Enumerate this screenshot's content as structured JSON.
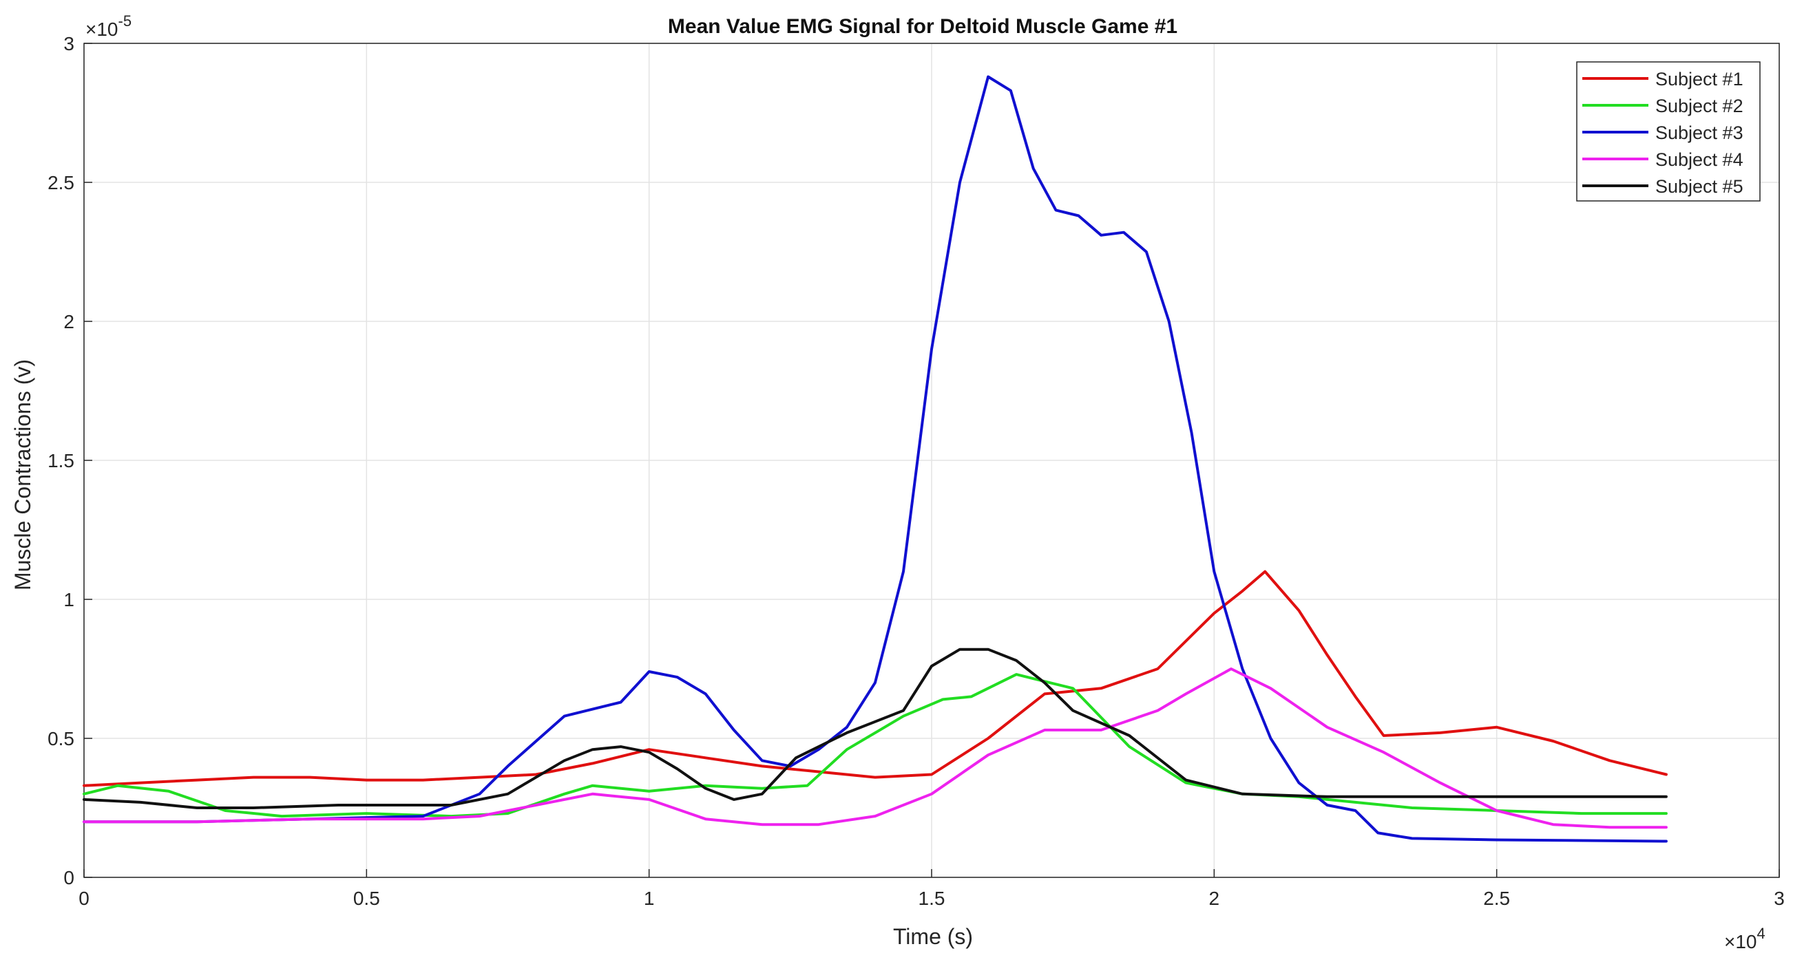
{
  "chart_data": {
    "type": "line",
    "title": "Mean Value EMG Signal for Deltoid Muscle Game #1",
    "xlabel": "Time (s)",
    "ylabel": "Muscle Contractions (v)",
    "xlim": [
      0,
      30000
    ],
    "ylim": [
      0,
      3e-05
    ],
    "x_multiplier_label": "×10",
    "x_multiplier_exp": "4",
    "y_multiplier_label": "×10",
    "y_multiplier_exp": "-5",
    "x_ticks": [
      0,
      5000,
      10000,
      15000,
      20000,
      25000,
      30000
    ],
    "x_tick_labels": [
      "0",
      "0.5",
      "1",
      "1.5",
      "2",
      "2.5",
      "3"
    ],
    "y_ticks": [
      0,
      5e-06,
      1e-05,
      1.5e-05,
      2e-05,
      2.5e-05,
      3e-05
    ],
    "y_tick_labels": [
      "0",
      "0.5",
      "1",
      "1.5",
      "2",
      "2.5",
      "3"
    ],
    "grid": true,
    "legend_position": "top-right",
    "series": [
      {
        "name": "Subject #1",
        "color": "#e01010",
        "x": [
          0,
          1000,
          2000,
          3000,
          4000,
          5000,
          6000,
          7000,
          8000,
          9000,
          10000,
          11000,
          12000,
          13000,
          14000,
          15000,
          16000,
          17000,
          18000,
          19000,
          20000,
          20500,
          20900,
          21500,
          22000,
          22500,
          23000,
          24000,
          25000,
          26000,
          27000,
          28000
        ],
        "y": [
          3.3e-06,
          3.4e-06,
          3.5e-06,
          3.6e-06,
          3.6e-06,
          3.5e-06,
          3.5e-06,
          3.6e-06,
          3.7e-06,
          4.1e-06,
          4.6e-06,
          4.3e-06,
          4e-06,
          3.8e-06,
          3.6e-06,
          3.7e-06,
          5e-06,
          6.6e-06,
          6.8e-06,
          7.5e-06,
          9.5e-06,
          1.03e-05,
          1.1e-05,
          9.6e-06,
          8e-06,
          6.5e-06,
          5.1e-06,
          5.2e-06,
          5.4e-06,
          4.9e-06,
          4.2e-06,
          3.7e-06
        ]
      },
      {
        "name": "Subject #2",
        "color": "#22dd22",
        "x": [
          0,
          600,
          1500,
          2500,
          3500,
          5000,
          6500,
          7500,
          8500,
          9000,
          10000,
          11000,
          12000,
          12800,
          13500,
          14500,
          15200,
          15700,
          16500,
          17500,
          18500,
          19500,
          20500,
          21500,
          22500,
          23500,
          25000,
          26500,
          28000
        ],
        "y": [
          3e-06,
          3.3e-06,
          3.1e-06,
          2.4e-06,
          2.2e-06,
          2.3e-06,
          2.2e-06,
          2.3e-06,
          3e-06,
          3.3e-06,
          3.1e-06,
          3.3e-06,
          3.2e-06,
          3.3e-06,
          4.6e-06,
          5.8e-06,
          6.4e-06,
          6.5e-06,
          7.3e-06,
          6.8e-06,
          4.7e-06,
          3.4e-06,
          3e-06,
          2.9e-06,
          2.7e-06,
          2.5e-06,
          2.4e-06,
          2.3e-06,
          2.3e-06
        ]
      },
      {
        "name": "Subject #3",
        "color": "#1010d0",
        "x": [
          0,
          2000,
          4000,
          6000,
          7000,
          7500,
          8500,
          9500,
          10000,
          10500,
          11000,
          11500,
          12000,
          12500,
          13000,
          13500,
          14000,
          14500,
          15000,
          15500,
          16000,
          16400,
          16800,
          17200,
          17600,
          18000,
          18400,
          18800,
          19200,
          19600,
          20000,
          20500,
          21000,
          21500,
          22000,
          22500,
          22900,
          23500,
          25000,
          28000
        ],
        "y": [
          2e-06,
          2e-06,
          2.1e-06,
          2.2e-06,
          3e-06,
          4e-06,
          5.8e-06,
          6.3e-06,
          7.4e-06,
          7.2e-06,
          6.6e-06,
          5.3e-06,
          4.2e-06,
          4e-06,
          4.6e-06,
          5.4e-06,
          7e-06,
          1.1e-05,
          1.9e-05,
          2.5e-05,
          2.88e-05,
          2.83e-05,
          2.55e-05,
          2.4e-05,
          2.38e-05,
          2.31e-05,
          2.32e-05,
          2.25e-05,
          2e-05,
          1.6e-05,
          1.1e-05,
          7.5e-06,
          5e-06,
          3.4e-06,
          2.6e-06,
          2.4e-06,
          1.6e-06,
          1.4e-06,
          1.35e-06,
          1.3e-06
        ]
      },
      {
        "name": "Subject #4",
        "color": "#ee22ee",
        "x": [
          0,
          2000,
          4000,
          6000,
          7000,
          8000,
          9000,
          10000,
          11000,
          12000,
          13000,
          14000,
          15000,
          16000,
          17000,
          18000,
          19000,
          19500,
          20300,
          21000,
          22000,
          23000,
          24000,
          25000,
          26000,
          27000,
          28000
        ],
        "y": [
          2e-06,
          2e-06,
          2.1e-06,
          2.1e-06,
          2.2e-06,
          2.6e-06,
          3e-06,
          2.8e-06,
          2.1e-06,
          1.9e-06,
          1.9e-06,
          2.2e-06,
          3e-06,
          4.4e-06,
          5.3e-06,
          5.3e-06,
          6e-06,
          6.6e-06,
          7.5e-06,
          6.8e-06,
          5.4e-06,
          4.5e-06,
          3.4e-06,
          2.4e-06,
          1.9e-06,
          1.8e-06,
          1.8e-06
        ]
      },
      {
        "name": "Subject #5",
        "color": "#111111",
        "x": [
          0,
          1000,
          2000,
          3000,
          4500,
          6500,
          7500,
          8500,
          9000,
          9500,
          10000,
          10500,
          11000,
          11500,
          12000,
          12600,
          13500,
          14500,
          15000,
          15500,
          16000,
          16500,
          17000,
          17500,
          18500,
          19500,
          20500,
          22000,
          25000,
          28000
        ],
        "y": [
          2.8e-06,
          2.7e-06,
          2.5e-06,
          2.5e-06,
          2.6e-06,
          2.6e-06,
          3e-06,
          4.2e-06,
          4.6e-06,
          4.7e-06,
          4.5e-06,
          3.9e-06,
          3.2e-06,
          2.8e-06,
          3e-06,
          4.3e-06,
          5.2e-06,
          6e-06,
          7.6e-06,
          8.2e-06,
          8.2e-06,
          7.8e-06,
          7e-06,
          6e-06,
          5.1e-06,
          3.5e-06,
          3e-06,
          2.9e-06,
          2.9e-06,
          2.9e-06
        ]
      }
    ]
  }
}
